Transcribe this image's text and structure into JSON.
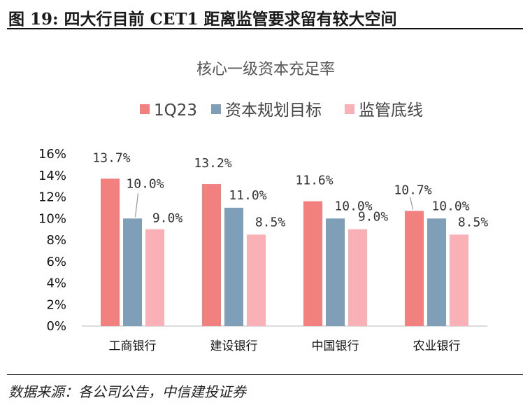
{
  "figure": {
    "title": "图 19:  四大行目前 CET1 距离监管要求留有较大空间",
    "source": "数据来源：各公司公告，中信建投证券"
  },
  "chart_data": {
    "type": "bar",
    "title": "核心一级资本充足率",
    "categories": [
      "工商银行",
      "建设银行",
      "中国银行",
      "农业银行"
    ],
    "series": [
      {
        "name": "1Q23",
        "color": "#f2807f",
        "values": [
          13.7,
          13.2,
          11.6,
          10.7
        ],
        "labels": [
          "13.7%",
          "13.2%",
          "11.6%",
          "10.7%"
        ]
      },
      {
        "name": "资本规划目标",
        "color": "#7f9fb8",
        "values": [
          10.0,
          11.0,
          10.0,
          10.0
        ],
        "labels": [
          "10.0%",
          "11.0%",
          "10.0%",
          "10.0%"
        ]
      },
      {
        "name": "监管底线",
        "color": "#f9b0b7",
        "values": [
          9.0,
          8.5,
          9.0,
          8.5
        ],
        "labels": [
          "9.0%",
          "8.5%",
          "9.0%",
          "8.5%"
        ]
      }
    ],
    "y_ticks": [
      "0%",
      "2%",
      "4%",
      "6%",
      "8%",
      "10%",
      "12%",
      "14%",
      "16%"
    ],
    "ylim": [
      0,
      16
    ],
    "legend_position": "top",
    "grid": false
  }
}
